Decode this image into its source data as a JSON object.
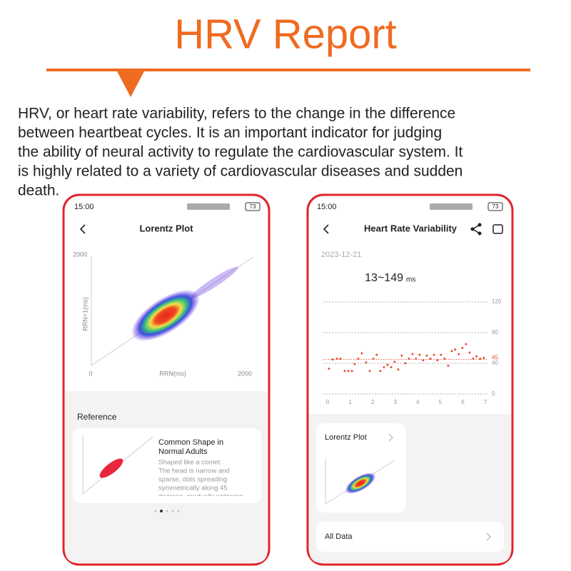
{
  "header": {
    "title": "HRV Report"
  },
  "intro": {
    "lines": [
      "HRV, or heart rate variability, refers to the change in the difference",
      "between heartbeat cycles. It is an important indicator for judging",
      "the ability of neural activity to regulate the cardiovascular system. It",
      "is highly related to a variety of cardiovascular diseases and sudden",
      "death."
    ]
  },
  "left_phone": {
    "time": "15:00",
    "battery": "73",
    "title": "Lorentz Plot",
    "y_axis_label": "RRN+1(ms)",
    "x_axis_label": "RRN(ms)",
    "y_max_label": "2000",
    "origin_label": "0",
    "x_max_label": "2000",
    "section": "Reference",
    "card": {
      "title_lines": [
        "Common Shape in",
        "Normal Adults"
      ],
      "description_lines": [
        "Shaped like a comet.",
        "The head is narrow and",
        "sparse, dots spreading",
        "symmetrically along 45",
        "degrees, gradually widening"
      ]
    }
  },
  "right_phone": {
    "time": "15:00",
    "battery": "73",
    "title": "Heart Rate Variability",
    "date": "2023-12-21",
    "range": "13~149",
    "range_unit": "ms",
    "chart": {
      "type": "scatter",
      "color": "#e8503a",
      "x": [
        0.06,
        0.22,
        0.41,
        0.57,
        0.76,
        0.92,
        1.08,
        1.2,
        1.36,
        1.52,
        1.71,
        1.87,
        2.03,
        2.18,
        2.34,
        2.5,
        2.66,
        2.82,
        2.97,
        3.13,
        3.29,
        3.45,
        3.61,
        3.77,
        3.92,
        4.08,
        4.24,
        4.4,
        4.56,
        4.72,
        4.87,
        5.03,
        5.19,
        5.35,
        5.51,
        5.66,
        5.82,
        5.98,
        6.14,
        6.3,
        6.46,
        6.61,
        6.77,
        6.93
      ],
      "y": [
        33,
        45,
        46,
        46,
        30,
        30,
        30,
        39,
        46,
        53,
        41,
        30,
        46,
        51,
        30,
        35,
        38,
        35,
        42,
        32,
        50,
        40,
        46,
        52,
        46,
        51,
        44,
        50,
        46,
        51,
        44,
        51,
        46,
        37,
        56,
        58,
        52,
        60,
        65,
        54,
        46,
        49,
        46,
        47
      ],
      "xlim": [
        0,
        7
      ],
      "ylim": [
        0,
        120
      ],
      "xticks": [
        0,
        1,
        2,
        3,
        4,
        5,
        6,
        7
      ],
      "yticks": [
        0,
        40,
        80,
        120
      ],
      "reference_line": {
        "value": 45,
        "color": "#e8503a"
      }
    },
    "card_title": "Lorentz Plot",
    "all_data": "All Data"
  }
}
